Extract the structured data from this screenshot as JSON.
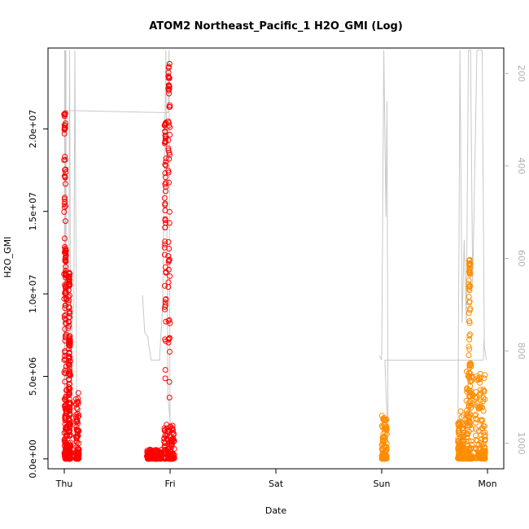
{
  "chart_data": {
    "type": "scatter",
    "title": "ATOM2 Northeast_Pacific_1 H2O_GMI (Log)",
    "xlabel": "Date",
    "ylabel": "H2O_GMI",
    "x_ticks": [
      "Thu",
      "Fri",
      "Sat",
      "Sun",
      "Mon"
    ],
    "y_ticks": [
      "0.0e+00",
      "5.0e+06",
      "1.0e+07",
      "1.5e+07",
      "2.0e+07"
    ],
    "y_tick_values": [
      0,
      5000000,
      10000000,
      15000000,
      20000000
    ],
    "ylim": [
      -600000,
      24900000
    ],
    "right_axis_ticks": [
      "200",
      "400",
      "600",
      "800",
      "1000"
    ],
    "right_axis_values": [
      200,
      400,
      600,
      800,
      1000
    ],
    "right_axis_lim": [
      1055,
      145
    ],
    "right_axis_reversed": true,
    "grid": false,
    "colors": {
      "series_red": "#ff0000",
      "series_orange": "#ff8c00",
      "profile_line": "#c8c8c8",
      "right_axis": "#b0b0b0"
    },
    "series": [
      {
        "color": "red",
        "clusters": [
          {
            "day": 0.0,
            "width": 0.03,
            "low": 0,
            "high": 4200000,
            "tall": [
              {
                "x": 0.005,
                "top": 21200000
              },
              {
                "x": 0.012,
                "top": 12800000
              }
            ]
          },
          {
            "day": 0.04,
            "width": 0.02,
            "low": 0,
            "high": 3600000,
            "tall": [
              {
                "x": 0.045,
                "top": 11300000
              },
              {
                "x": 0.05,
                "top": 7400000
              }
            ]
          },
          {
            "day": 0.11,
            "width": 0.03,
            "low": 0,
            "high": 4400000,
            "tall": []
          },
          {
            "day": 0.78,
            "width": 0.14,
            "low": 0,
            "high": 600000,
            "tall": []
          },
          {
            "day": 0.94,
            "width": 0.1,
            "low": 0,
            "high": 2100000,
            "tall": [
              {
                "x": 0.955,
                "top": 20400000
              },
              {
                "x": 0.99,
                "top": 24000000
              }
            ]
          }
        ]
      },
      {
        "color": "orange",
        "clusters": [
          {
            "day": 3.0,
            "width": 0.05,
            "low": 0,
            "high": 2700000,
            "tall": []
          },
          {
            "day": 3.72,
            "width": 0.06,
            "low": 0,
            "high": 2900000,
            "tall": []
          },
          {
            "day": 3.8,
            "width": 0.06,
            "low": 0,
            "high": 5800000,
            "tall": [
              {
                "x": 3.83,
                "top": 12100000
              }
            ]
          },
          {
            "day": 3.88,
            "width": 0.1,
            "low": 0,
            "high": 5200000,
            "tall": []
          }
        ]
      }
    ]
  }
}
